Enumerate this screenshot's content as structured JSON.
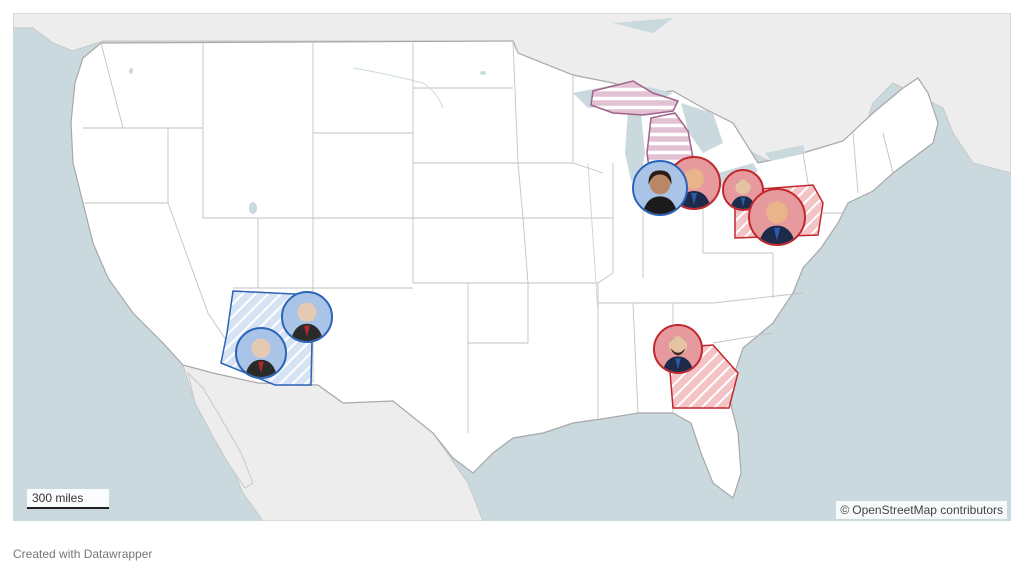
{
  "map": {
    "scale_label": "300 miles",
    "attribution": "OpenStreetMap contributors",
    "attribution_symbol": "©",
    "credit": "Created with Datawrapper",
    "colors": {
      "water": "#c9d9de",
      "land_us": "#ffffff",
      "land_other": "#ededed",
      "border": "#9a9a9a",
      "blue_state": "#2b63b8",
      "red_state": "#c1272d",
      "purple_state": "#a0628a"
    },
    "highlighted_states": [
      {
        "name": "Arizona",
        "party": "blue"
      },
      {
        "name": "Michigan",
        "party": "purple"
      },
      {
        "name": "Pennsylvania",
        "party": "red"
      },
      {
        "name": "Georgia",
        "party": "red"
      }
    ],
    "markers": [
      {
        "state": "Arizona",
        "party": "blue",
        "icon": "candidate-portrait-icon"
      },
      {
        "state": "Arizona",
        "party": "blue",
        "icon": "candidate-portrait-icon"
      },
      {
        "state": "Michigan",
        "party": "blue",
        "icon": "candidate-portrait-icon"
      },
      {
        "state": "Michigan",
        "party": "red",
        "icon": "candidate-portrait-icon"
      },
      {
        "state": "Pennsylvania",
        "party": "red",
        "icon": "candidate-portrait-icon"
      },
      {
        "state": "Pennsylvania",
        "party": "red",
        "icon": "candidate-portrait-icon"
      },
      {
        "state": "Georgia",
        "party": "red",
        "icon": "candidate-portrait-icon"
      }
    ]
  }
}
